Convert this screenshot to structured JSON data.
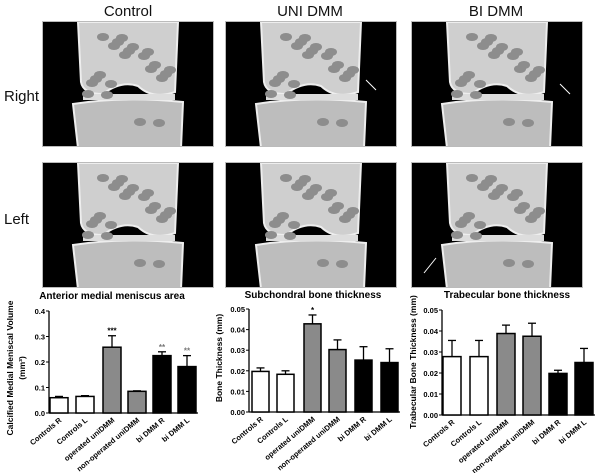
{
  "figure": {
    "column_labels": [
      "Control",
      "UNI DMM",
      "BI DMM"
    ],
    "row_labels": [
      "Right",
      "Left"
    ]
  },
  "chart_data": [
    {
      "type": "bar",
      "title": "Anterior medial meniscus area",
      "ylabel": "Calcified Medial Meniscal Volume",
      "ylabel_unit": "(mm³)",
      "xlabel": "",
      "categories": [
        "Controls R",
        "Controls L",
        "operated uniDMM",
        "non-operated uniDMM",
        "bi DMM R",
        "bi DMM L"
      ],
      "values": [
        0.06,
        0.065,
        0.258,
        0.085,
        0.225,
        0.182
      ],
      "errors": [
        0.005,
        0.003,
        0.045,
        0.002,
        0.015,
        0.043
      ],
      "significance": [
        "",
        "",
        "***",
        "",
        "**",
        "**"
      ],
      "bar_colors": [
        "#ffffff",
        "#ffffff",
        "#8a8a8a",
        "#8a8a8a",
        "#000000",
        "#000000"
      ],
      "ylim": [
        0,
        0.4
      ],
      "yticks": [
        "0.0",
        "0.1",
        "0.2",
        "0.3",
        "0.4"
      ],
      "grid": false
    },
    {
      "type": "bar",
      "title": "Subchondral bone thickness",
      "ylabel": "Bone Thickness (mm)",
      "xlabel": "",
      "categories": [
        "Controls R",
        "Controls L",
        "operated uniDMM",
        "non-operated uniDMM",
        "bi DMM R",
        "bi DMM L"
      ],
      "values": [
        0.0197,
        0.0183,
        0.0428,
        0.0303,
        0.0252,
        0.024
      ],
      "errors": [
        0.0017,
        0.0017,
        0.0043,
        0.0047,
        0.0065,
        0.0067
      ],
      "significance": [
        "",
        "",
        "*",
        "",
        "",
        ""
      ],
      "bar_colors": [
        "#ffffff",
        "#ffffff",
        "#8a8a8a",
        "#8a8a8a",
        "#000000",
        "#000000"
      ],
      "ylim": [
        0,
        0.05
      ],
      "yticks": [
        "0.00",
        "0.01",
        "0.02",
        "0.03",
        "0.04",
        "0.05"
      ],
      "grid": false
    },
    {
      "type": "bar",
      "title": "Trabecular bone thickness",
      "ylabel": "Trabecular Bone Thickness (mm)",
      "xlabel": "",
      "categories": [
        "Controls R",
        "Controls L",
        "operated uniDMM",
        "non-operated uniDMM",
        "bi DMM R",
        "bi DMM L"
      ],
      "values": [
        0.0278,
        0.0278,
        0.0388,
        0.0375,
        0.0198,
        0.025
      ],
      "errors": [
        0.0077,
        0.0077,
        0.004,
        0.0062,
        0.0015,
        0.0067
      ],
      "significance": [
        "",
        "",
        "",
        "",
        "",
        ""
      ],
      "bar_colors": [
        "#ffffff",
        "#ffffff",
        "#8a8a8a",
        "#8a8a8a",
        "#000000",
        "#000000"
      ],
      "ylim": [
        0,
        0.05
      ],
      "yticks": [
        "0.00",
        "0.01",
        "0.02",
        "0.03",
        "0.04",
        "0.05"
      ],
      "grid": false
    }
  ]
}
